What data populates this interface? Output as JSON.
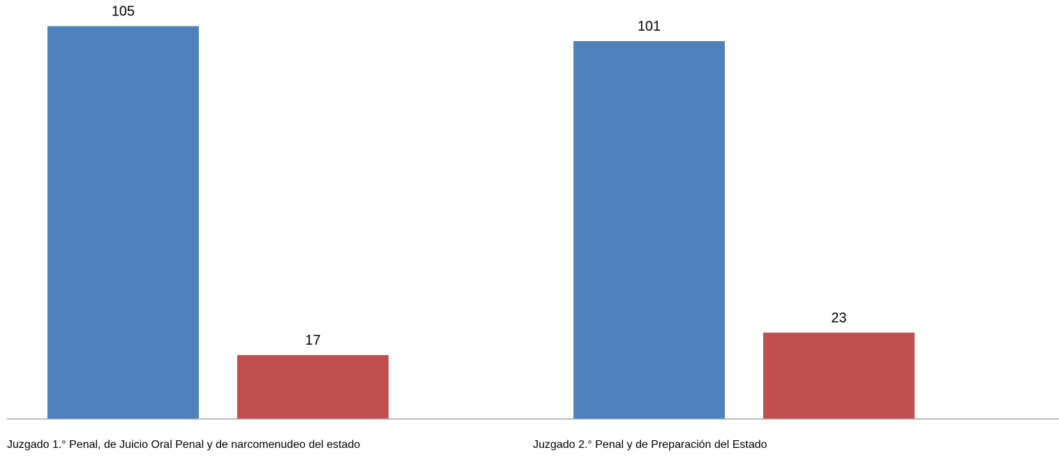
{
  "chart_data": {
    "type": "bar",
    "categories": [
      "Juzgado 1.° Penal, de Juicio Oral Penal y de narcomenudeo del estado",
      "Juzgado 2.° Penal y de Preparación del Estado"
    ],
    "series": [
      {
        "values": [
          105,
          101
        ],
        "color": "#4F81BD"
      },
      {
        "values": [
          17,
          23
        ],
        "color": "#C0504D"
      }
    ],
    "title": "",
    "xlabel": "",
    "ylabel": "",
    "ylim": [
      0,
      112
    ],
    "grid": false,
    "data_labels": true,
    "axis_color": "#A6A6A6"
  }
}
